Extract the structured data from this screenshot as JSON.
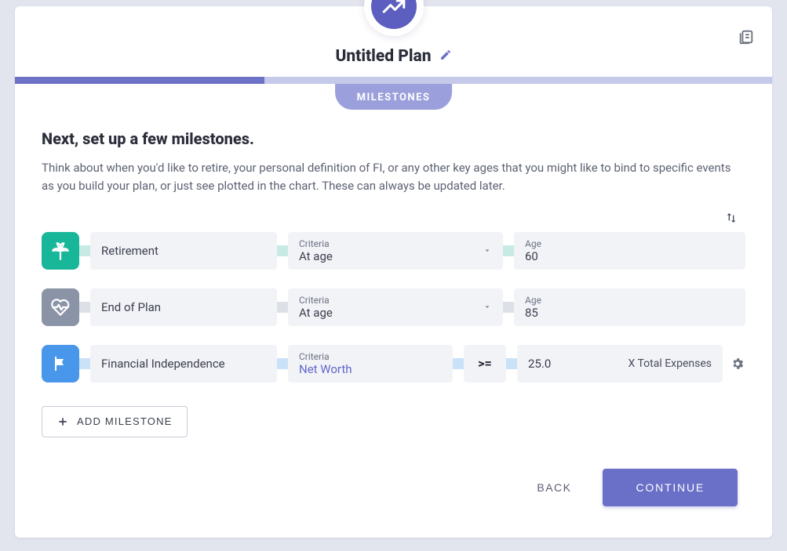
{
  "colors": {
    "page_bg": "#e2e4ee",
    "card_bg": "#ffffff",
    "primary": "#6a70c7",
    "progress_track": "#c5c9ea",
    "progress_fill": "#6d72c7",
    "tab_chip": "#9ba0dc",
    "field_bg": "#f2f3f7",
    "icon_teal": "#19b79a",
    "icon_gray": "#8b93a7",
    "icon_blue": "#4897eb",
    "conn_teal": "#c7ebe4",
    "conn_gray": "#dde0e7",
    "conn_blue": "#c9e2f8",
    "text_primary": "#2b2e3a",
    "text_secondary": "#5d6274",
    "link": "#6066c9"
  },
  "header": {
    "title": "Untitled Plan",
    "tab": "MILESTONES",
    "progress_pct": 33
  },
  "section": {
    "title": "Next, set up a few milestones.",
    "description": "Think about when you'd like to retire, your personal definition of FI, or any other key ages that you might like to bind to specific events as you build your plan, or just see plotted in the chart. These can always be updated later."
  },
  "labels": {
    "criteria": "Criteria",
    "age": "Age"
  },
  "milestones": [
    {
      "icon": "palm-tree",
      "color": "teal",
      "name": "Retirement",
      "criteria": "At age",
      "value": "60",
      "mode": "age"
    },
    {
      "icon": "heartbeat",
      "color": "gray",
      "name": "End of Plan",
      "criteria": "At age",
      "value": "85",
      "mode": "age"
    },
    {
      "icon": "flag",
      "color": "blue",
      "name": "Financial Independence",
      "criteria": "Net Worth",
      "operator": ">=",
      "value": "25.0",
      "suffix": "X Total Expenses",
      "mode": "fi"
    }
  ],
  "buttons": {
    "add": "ADD MILESTONE",
    "back": "BACK",
    "continue": "CONTINUE"
  }
}
